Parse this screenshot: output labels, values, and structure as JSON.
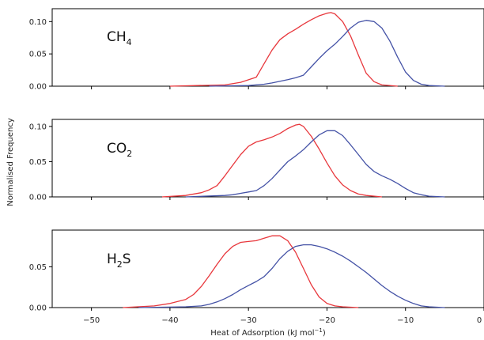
{
  "chart_data": {
    "type": "line",
    "xlabel": "Heat of Adsorption (kJ mol",
    "xlabel_sup": "−1",
    "xlabel_close": ")",
    "ylabel": "Normalised Frequency",
    "xlim": [
      -55,
      0
    ],
    "x_ticks": [
      -50,
      -40,
      -30,
      -20,
      -10,
      0
    ],
    "x_tick_labels": [
      "−50",
      "−40",
      "−30",
      "−20",
      "−10",
      "0"
    ],
    "colors": {
      "red": "#e8383d",
      "blue": "#4452a6"
    },
    "panels": [
      {
        "label_main": "CH",
        "label_sub": "4",
        "label_tail": "",
        "ylim": [
          0,
          0.12
        ],
        "y_ticks": [
          0.0,
          0.05,
          0.1
        ],
        "y_tick_labels": [
          "0.00",
          "0.05",
          "0.10"
        ],
        "series": [
          {
            "color": "red",
            "x": [
              -40,
              -33,
              -31,
              -29,
              -28,
              -27,
              -26,
              -25,
              -24,
              -23,
              -22,
              -21,
              -20,
              -19.5,
              -19,
              -18,
              -17,
              -16,
              -15,
              -14,
              -13,
              -11
            ],
            "y": [
              0,
              0.002,
              0.006,
              0.014,
              0.035,
              0.056,
              0.072,
              0.081,
              0.088,
              0.096,
              0.103,
              0.109,
              0.113,
              0.114,
              0.112,
              0.1,
              0.078,
              0.048,
              0.02,
              0.007,
              0.002,
              0
            ]
          },
          {
            "color": "blue",
            "x": [
              -35,
              -30,
              -28,
              -27,
              -25,
              -24,
              -23,
              -22,
              -21,
              -20,
              -19,
              -18,
              -17,
              -16,
              -15,
              -14,
              -13,
              -12,
              -11,
              -10,
              -9,
              -8,
              -7,
              -5
            ],
            "y": [
              0,
              0.001,
              0.003,
              0.005,
              0.01,
              0.013,
              0.017,
              0.03,
              0.043,
              0.055,
              0.065,
              0.077,
              0.09,
              0.099,
              0.102,
              0.1,
              0.09,
              0.07,
              0.045,
              0.022,
              0.009,
              0.003,
              0.001,
              0
            ]
          }
        ]
      },
      {
        "label_main": "CO",
        "label_sub": "2",
        "label_tail": "",
        "ylim": [
          0,
          0.11
        ],
        "y_ticks": [
          0.0,
          0.05,
          0.1
        ],
        "y_tick_labels": [
          "0.00",
          "0.05",
          "0.10"
        ],
        "series": [
          {
            "color": "red",
            "x": [
              -41,
              -38,
              -36,
              -35,
              -34,
              -33,
              -32,
              -31,
              -30,
              -29,
              -28,
              -27,
              -26,
              -25,
              -24,
              -23.5,
              -23,
              -22,
              -21,
              -20,
              -19,
              -18,
              -17,
              -16,
              -15,
              -13
            ],
            "y": [
              0,
              0.002,
              0.006,
              0.01,
              0.016,
              0.03,
              0.045,
              0.06,
              0.072,
              0.078,
              0.081,
              0.085,
              0.09,
              0.097,
              0.102,
              0.103,
              0.1,
              0.086,
              0.068,
              0.048,
              0.03,
              0.017,
              0.009,
              0.004,
              0.002,
              0
            ]
          },
          {
            "color": "blue",
            "x": [
              -38,
              -33,
              -32,
              -31,
              -30,
              -29,
              -28,
              -27,
              -26,
              -25,
              -24,
              -23,
              -22,
              -21,
              -20,
              -19,
              -18,
              -17,
              -16,
              -15,
              -14,
              -13,
              -12,
              -11,
              -10,
              -9,
              -8,
              -7,
              -5
            ],
            "y": [
              0,
              0.002,
              0.003,
              0.005,
              0.007,
              0.009,
              0.016,
              0.026,
              0.038,
              0.05,
              0.058,
              0.067,
              0.078,
              0.088,
              0.094,
              0.094,
              0.087,
              0.074,
              0.06,
              0.046,
              0.036,
              0.03,
              0.025,
              0.019,
              0.012,
              0.006,
              0.003,
              0.001,
              0
            ]
          }
        ]
      },
      {
        "label_main": "H",
        "label_sub": "2",
        "label_tail": "S",
        "ylim": [
          0,
          0.095
        ],
        "y_ticks": [
          0.0,
          0.05
        ],
        "y_tick_labels": [
          "0.00",
          "0.05"
        ],
        "series": [
          {
            "color": "red",
            "x": [
              -46,
              -42,
              -40,
              -38,
              -37,
              -36,
              -35,
              -34,
              -33,
              -32,
              -31,
              -30,
              -29,
              -28,
              -27,
              -26,
              -25,
              -24,
              -23,
              -22,
              -21,
              -20,
              -19,
              -18,
              -16
            ],
            "y": [
              0,
              0.002,
              0.005,
              0.01,
              0.016,
              0.026,
              0.039,
              0.053,
              0.066,
              0.075,
              0.08,
              0.081,
              0.082,
              0.085,
              0.088,
              0.088,
              0.082,
              0.068,
              0.048,
              0.028,
              0.013,
              0.005,
              0.002,
              0.001,
              0
            ]
          },
          {
            "color": "blue",
            "x": [
              -44,
              -38,
              -36,
              -35,
              -34,
              -33,
              -32,
              -31,
              -30,
              -29,
              -28,
              -27,
              -26,
              -25,
              -24,
              -23,
              -22,
              -21,
              -20,
              -19,
              -18,
              -17,
              -16,
              -15,
              -14,
              -13,
              -12,
              -11,
              -10,
              -9,
              -8,
              -7,
              -5
            ],
            "y": [
              0,
              0.001,
              0.002,
              0.004,
              0.007,
              0.011,
              0.016,
              0.022,
              0.027,
              0.032,
              0.038,
              0.048,
              0.06,
              0.069,
              0.075,
              0.077,
              0.077,
              0.075,
              0.072,
              0.068,
              0.063,
              0.057,
              0.05,
              0.043,
              0.035,
              0.027,
              0.02,
              0.014,
              0.009,
              0.005,
              0.002,
              0.001,
              0
            ]
          }
        ]
      }
    ]
  }
}
